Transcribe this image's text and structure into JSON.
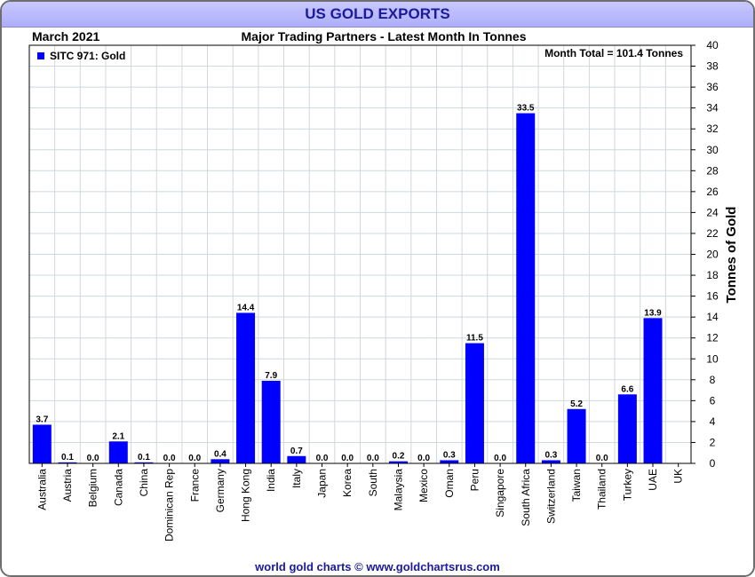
{
  "header": {
    "title": "US GOLD EXPORTS",
    "date": "March 2021",
    "subtitle": "Major Trading Partners - Latest Month In Tonnes"
  },
  "footer": {
    "credit": "world gold charts © www.goldchartsrus.com"
  },
  "colors": {
    "bar": "#0000ff",
    "grid": "#cfd8dc",
    "title_bg": "#b4b4fa"
  },
  "chart_data": {
    "type": "bar",
    "title": "US GOLD EXPORTS",
    "subtitle": "Major Trading Partners - Latest Month In Tonnes",
    "xlabel": "",
    "ylabel": "Tonnes of Gold",
    "ylim": [
      0,
      40
    ],
    "yticks": [
      0,
      2,
      4,
      6,
      8,
      10,
      12,
      14,
      16,
      18,
      20,
      22,
      24,
      26,
      28,
      30,
      32,
      34,
      36,
      38,
      40
    ],
    "grid": true,
    "legend": {
      "position": "top-left",
      "entries": [
        "SITC 971: Gold"
      ]
    },
    "annotation": "Month Total = 101.4 Tonnes",
    "categories": [
      "Australia",
      "Austria",
      "Belgium",
      "Canada",
      "China",
      "Dominican Rep",
      "France",
      "Germany",
      "Hong Kong",
      "India",
      "Italy",
      "Japan",
      "Korea",
      "South",
      "Malaysia",
      "Mexico",
      "Oman",
      "Peru",
      "Singapore",
      "South Africa",
      "Switzerland",
      "Taiwan",
      "Thailand",
      "Turkey",
      "UAE",
      "UK"
    ],
    "values": [
      3.7,
      0.1,
      0.0,
      2.1,
      0.1,
      0.0,
      0.0,
      0.4,
      14.4,
      7.9,
      0.7,
      0.0,
      0.0,
      0.0,
      0.2,
      0.0,
      0.3,
      11.5,
      0.0,
      33.5,
      0.3,
      5.2,
      0.0,
      6.6,
      13.9,
      null
    ],
    "labels": [
      "3.7",
      "0.1",
      "0.0",
      "2.1",
      "0.1",
      "0.0",
      "0.0",
      "0.4",
      "14.4",
      "7.9",
      "0.7",
      "0.0",
      "0.0",
      "0.0",
      "0.2",
      "0.0",
      "0.3",
      "11.5",
      "0.0",
      "33.5",
      "0.3",
      "5.2",
      "0.0",
      "6.6",
      "13.9",
      ""
    ]
  }
}
